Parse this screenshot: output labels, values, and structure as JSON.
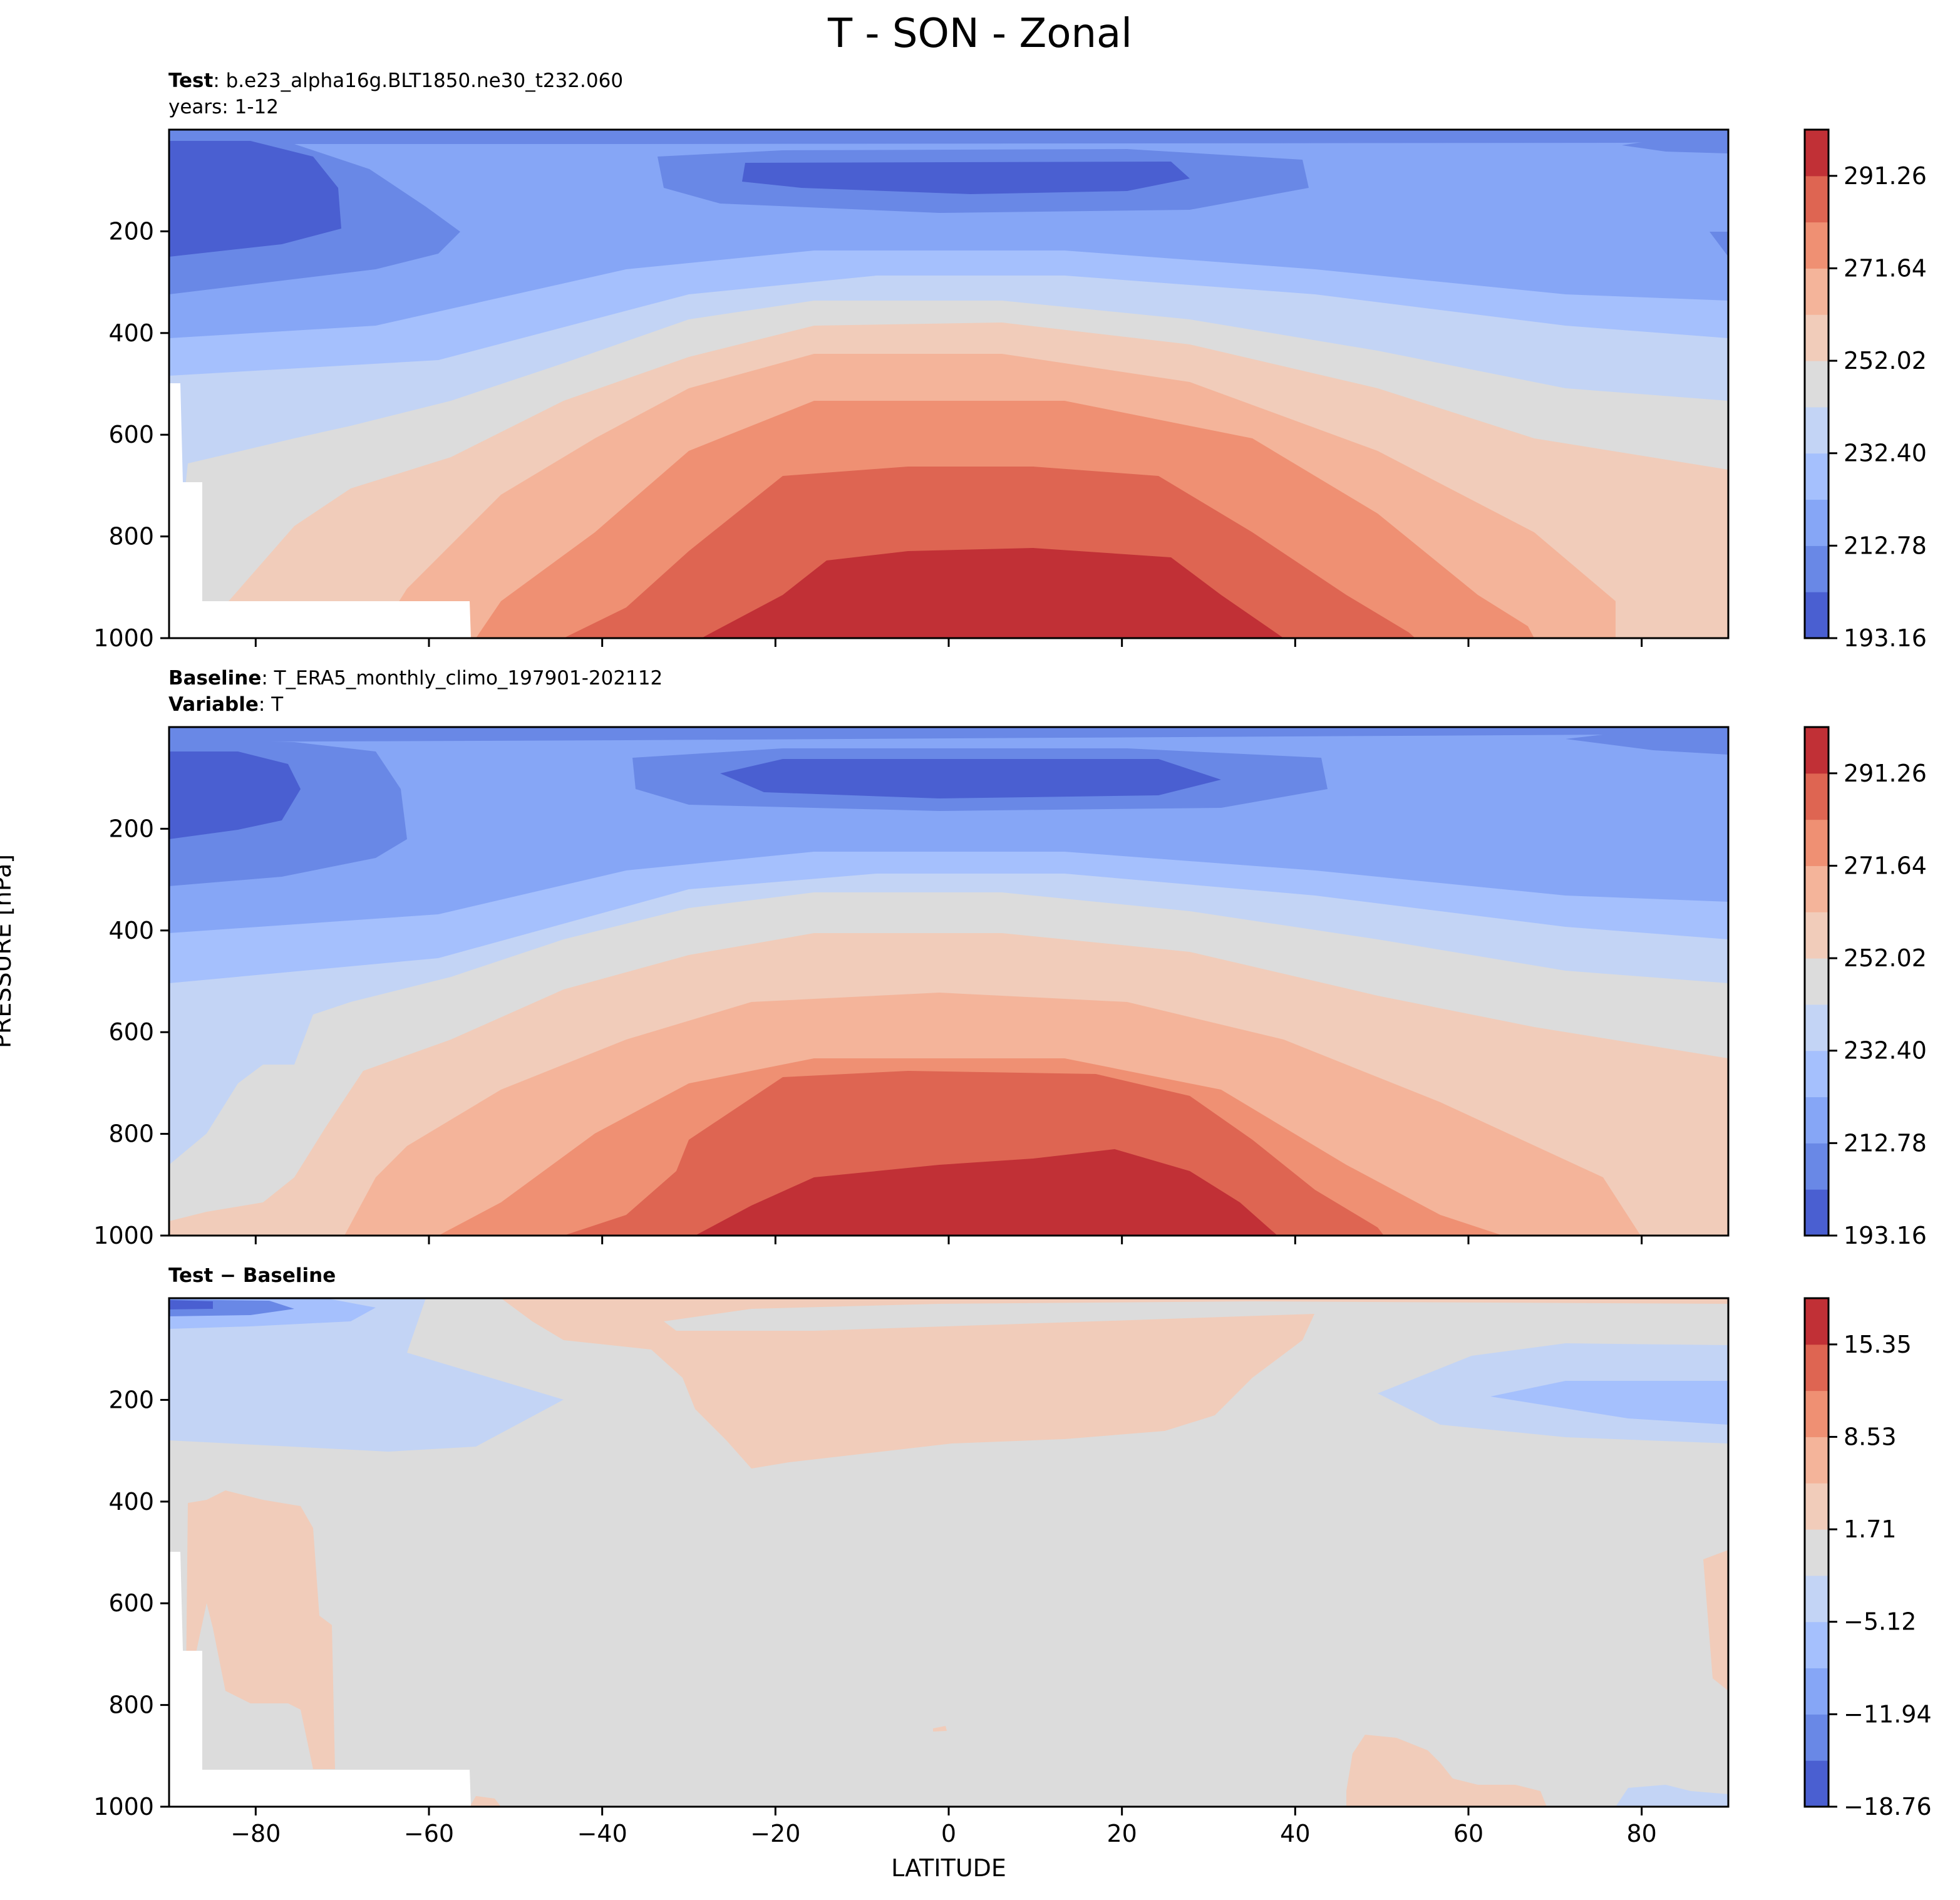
{
  "figure": {
    "title": "T - SON - Zonal",
    "ylabel": "PRESSURE [hPa]",
    "xlabel": "LATITUDE"
  },
  "panels": [
    {
      "key": "test",
      "line1_bold": "Test",
      "line1_rest": ": b.e23_alpha16g.BLT1850.ne30_t232.060",
      "line2": "years: 1-12"
    },
    {
      "key": "baseline",
      "line1_bold": "Baseline",
      "line1_rest": ": T_ERA5_monthly_climo_197901-202112",
      "line2_bold": "Variable",
      "line2_rest": ": T"
    },
    {
      "key": "diff",
      "line1_bold": "Test − Baseline"
    }
  ],
  "colors": {
    "temperature": [
      "#4a5fd1",
      "#6988e6",
      "#86a6f6",
      "#a5c0fd",
      "#c3d4f5",
      "#dcdcdc",
      "#f1ccba",
      "#f4b49a",
      "#ef9073",
      "#de6552",
      "#c13036"
    ],
    "difference": [
      "#4a5fd1",
      "#6988e6",
      "#86a6f6",
      "#a5c0fd",
      "#c3d4f5",
      "#dcdcdc",
      "#f1ccba",
      "#f4b49a",
      "#ef9073",
      "#de6552",
      "#c13036"
    ]
  },
  "chart_data": [
    {
      "type": "contour",
      "title": "Test: b.e23_alpha16g.BLT1850.ne30_t232.060",
      "xlabel": "LATITUDE",
      "ylabel": "PRESSURE [hPa]",
      "xlim": [
        -90,
        90
      ],
      "ylim": [
        1000,
        0
      ],
      "inverted_y": true,
      "xticks": [
        -80,
        -60,
        -40,
        -20,
        0,
        20,
        40,
        60,
        80
      ],
      "yticks": [
        200,
        400,
        600,
        800,
        1000
      ],
      "colorbar_ticks": [
        "193.16",
        "212.78",
        "232.40",
        "252.02",
        "271.64",
        "291.26"
      ],
      "colorbar_levels": [
        193.16,
        202.97,
        212.78,
        222.59,
        232.4,
        242.21,
        252.02,
        261.83,
        271.64,
        281.45,
        291.26,
        301.07
      ],
      "isotherm_pressure_by_level_hPa": {
        "cold_core": [
          {
            "lat": -90,
            "p": 20
          },
          {
            "lat": -80,
            "p": 50
          },
          {
            "lat": -70,
            "p": 90
          },
          {
            "lat": -70,
            "p": 200
          },
          {
            "lat": -80,
            "p": 240
          },
          {
            "lat": -90,
            "p": 250
          }
        ],
        "warmest_top_at_equator_hPa": 830
      }
    },
    {
      "type": "contour",
      "title": "Baseline: T_ERA5_monthly_climo_197901-202112",
      "xlabel": "LATITUDE",
      "ylabel": "PRESSURE [hPa]",
      "xlim": [
        -90,
        90
      ],
      "ylim": [
        1000,
        0
      ],
      "inverted_y": true,
      "xticks": [
        -80,
        -60,
        -40,
        -20,
        0,
        20,
        40,
        60,
        80
      ],
      "yticks": [
        200,
        400,
        600,
        800,
        1000
      ],
      "colorbar_ticks": [
        "193.16",
        "212.78",
        "232.40",
        "252.02",
        "271.64",
        "291.26"
      ],
      "colorbar_levels": [
        193.16,
        202.97,
        212.78,
        222.59,
        232.4,
        242.21,
        252.02,
        261.83,
        271.64,
        281.45,
        291.26,
        301.07
      ],
      "warmest_top_at_equator_hPa": 840
    },
    {
      "type": "contour",
      "title": "Test − Baseline",
      "xlabel": "LATITUDE",
      "ylabel": "PRESSURE [hPa]",
      "xlim": [
        -90,
        90
      ],
      "ylim": [
        1000,
        0
      ],
      "inverted_y": true,
      "xticks": [
        -80,
        -60,
        -40,
        -20,
        0,
        20,
        40,
        60,
        80
      ],
      "yticks": [
        200,
        400,
        600,
        800,
        1000
      ],
      "colorbar_ticks": [
        "−18.76",
        "−11.94",
        "−5.12",
        "1.71",
        "8.53",
        "15.35"
      ],
      "colorbar_levels": [
        -18.76,
        -15.35,
        -11.94,
        -8.53,
        -5.12,
        -1.71,
        1.71,
        5.12,
        8.53,
        11.94,
        15.35,
        18.76
      ]
    }
  ]
}
